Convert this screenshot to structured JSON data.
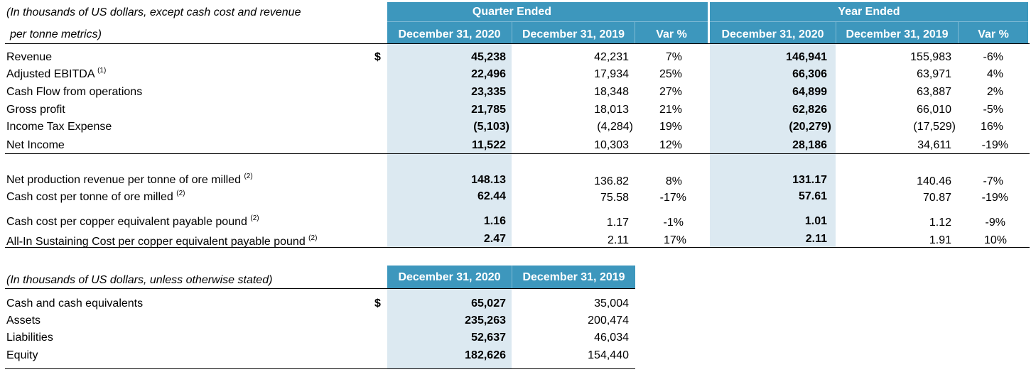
{
  "table1": {
    "caption_line1": "(In thousands of US dollars, except cash cost and revenue",
    "caption_line2": "per tonne metrics)",
    "quarter_title": "Quarter Ended",
    "year_title": "Year Ended",
    "col_headers": [
      "December 31, 2020",
      "December 31, 2019",
      "Var %",
      "December 31, 2020",
      "December 31, 2019",
      "Var %"
    ],
    "currency_symbol": "$",
    "rows": [
      {
        "label": "Revenue",
        "note": "",
        "values": [
          "45,238",
          "42,231",
          "7%",
          "146,941",
          "155,983",
          "-6%"
        ]
      },
      {
        "label": "Adjusted EBITDA",
        "note": "(1)",
        "values": [
          "22,496",
          "17,934",
          "25%",
          "66,306",
          "63,971",
          "4%"
        ]
      },
      {
        "label": "Cash Flow from operations",
        "note": "",
        "values": [
          "23,335",
          "18,348",
          "27%",
          "64,899",
          "63,887",
          "2%"
        ]
      },
      {
        "label": "Gross profit",
        "note": "",
        "values": [
          "21,785",
          "18,013",
          "21%",
          "62,826",
          "66,010",
          "-5%"
        ]
      },
      {
        "label": "Income Tax Expense",
        "note": "",
        "values": [
          "(5,103)",
          "(4,284)",
          "19%",
          "(20,279)",
          "(17,529)",
          "16%"
        ]
      },
      {
        "label": "Net Income",
        "note": "",
        "values": [
          "11,522",
          "10,303",
          "12%",
          "28,186",
          "34,611",
          "-19%"
        ]
      },
      {
        "label": "Net production revenue per tonne of ore milled",
        "note": "(2)",
        "values": [
          "148.13",
          "136.82",
          "8%",
          "131.17",
          "140.46",
          "-7%"
        ]
      },
      {
        "label": "Cash cost per tonne of ore milled",
        "note": "(2)",
        "values": [
          "62.44",
          "75.58",
          "-17%",
          "57.61",
          "70.87",
          "-19%"
        ]
      },
      {
        "label": "Cash cost per copper equivalent payable pound",
        "note": "(2)",
        "values": [
          "1.16",
          "1.17",
          "-1%",
          "1.01",
          "1.12",
          "-9%"
        ]
      },
      {
        "label": "All-In Sustaining Cost per copper equivalent payable pound",
        "note": "(2)",
        "values": [
          "2.47",
          "2.11",
          "17%",
          "2.11",
          "1.91",
          "10%"
        ]
      }
    ]
  },
  "table2": {
    "caption": "(In thousands of US dollars, unless otherwise stated)",
    "col_headers": [
      "December 31, 2020",
      "December 31, 2019"
    ],
    "currency_symbol": "$",
    "rows": [
      {
        "label": "Cash and cash equivalents",
        "values": [
          "65,027",
          "35,004"
        ]
      },
      {
        "label": "Assets",
        "values": [
          "235,263",
          "200,474"
        ]
      },
      {
        "label": "Liabilities",
        "values": [
          "52,637",
          "46,034"
        ]
      },
      {
        "label": "Equity",
        "values": [
          "182,626",
          "154,440"
        ]
      }
    ]
  },
  "colors": {
    "header": "#3d97bd",
    "shade": "#dce9f1"
  }
}
